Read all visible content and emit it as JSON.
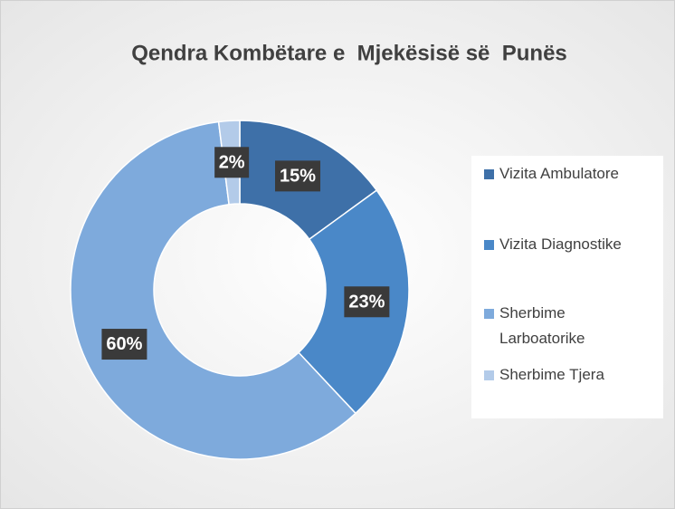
{
  "chart_data": {
    "type": "donut",
    "title": "Qendra Kombëtare e  Mjekësisë së  Punës",
    "categories": [
      "Vizita Ambulatore",
      "Vizita Diagnostike",
      "Sherbime Larboatorike",
      "Sherbime Tjera"
    ],
    "values": [
      15,
      23,
      60,
      2
    ],
    "value_labels": [
      "15%",
      "23%",
      "60%",
      "2%"
    ],
    "colors": [
      "#3e70a8",
      "#4a88c8",
      "#7eaadc",
      "#b3cbe9"
    ],
    "legend": "right"
  }
}
